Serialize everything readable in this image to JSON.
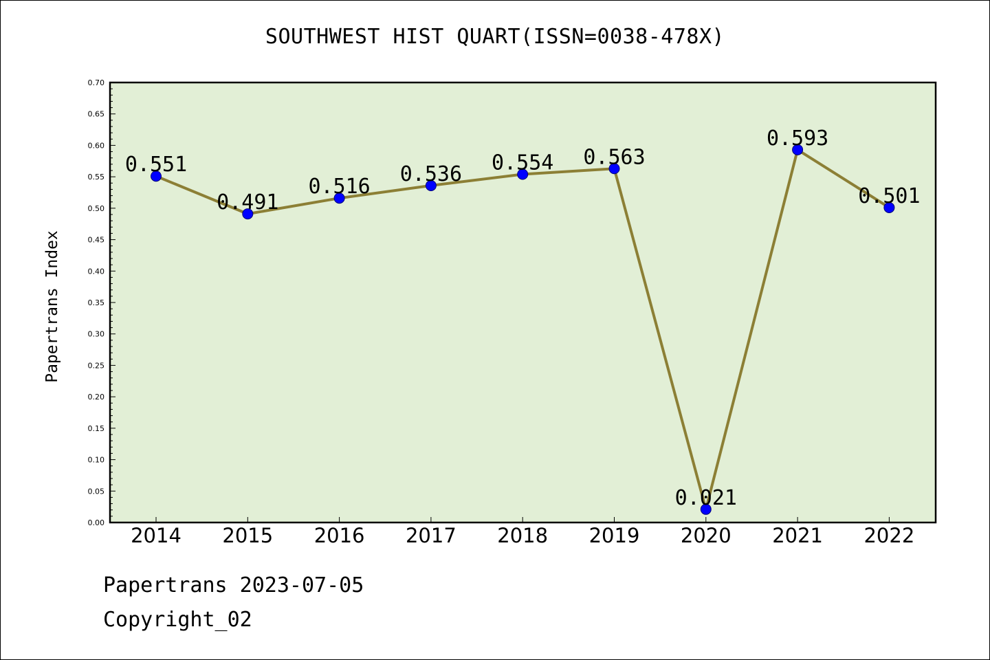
{
  "chart_data": {
    "type": "line",
    "title": "SOUTHWEST HIST QUART(ISSN=0038-478X)",
    "xlabel": "",
    "ylabel": "Papertrans Index",
    "x": [
      "2014",
      "2015",
      "2016",
      "2017",
      "2018",
      "2019",
      "2020",
      "2021",
      "2022"
    ],
    "series": [
      {
        "values": [
          0.551,
          0.491,
          0.516,
          0.536,
          0.554,
          0.563,
          0.021,
          0.593,
          0.501
        ],
        "data_labels": [
          "0.551",
          "0.491",
          "0.516",
          "0.536",
          "0.554",
          "0.563",
          "0.021",
          "0.593",
          "0.501"
        ]
      }
    ],
    "ylim": [
      0,
      0.7
    ],
    "yticks": [
      "0.00",
      "0.05",
      "0.10",
      "0.15",
      "0.20",
      "0.25",
      "0.30",
      "0.35",
      "0.40",
      "0.45",
      "0.50",
      "0.55",
      "0.60",
      "0.65",
      "0.70"
    ],
    "grid": false,
    "legend": "none",
    "colors": {
      "plot_background": "#e2efd6",
      "line": "#8c7f35",
      "marker": "#0000ff",
      "axes": "#000000"
    }
  },
  "footer": {
    "line1": "Papertrans 2023-07-05",
    "line2": "Copyright_02"
  }
}
